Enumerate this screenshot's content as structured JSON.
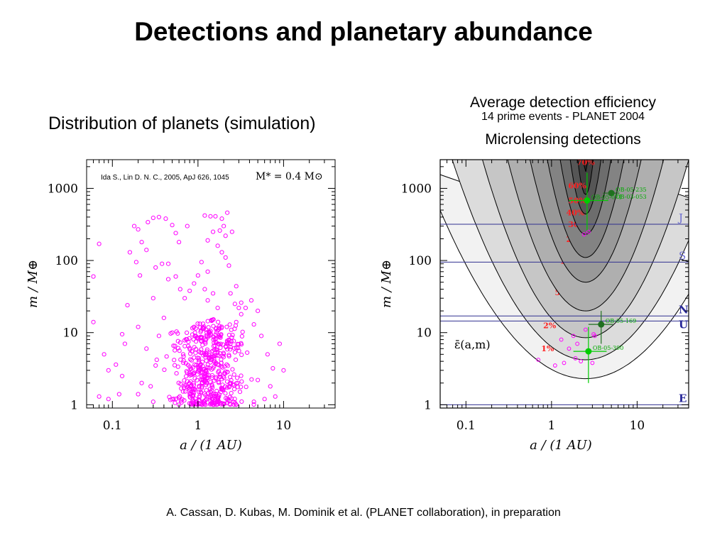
{
  "slide": {
    "title": "Detections and planetary abundance",
    "left_subtitle": "Distribution of planets (simulation)",
    "right_subtitle_1": "Average detection efficiency",
    "right_subtitle_2": "14 prime events - PLANET 2004",
    "right_subtitle_3": "Microlensing detections",
    "credits": "A. Cassan, D. Kubas, M. Dominik et al. (PLANET collaboration), in preparation"
  },
  "colors": {
    "simulated_planets": "#ff00ff",
    "planet_lines": "#303090",
    "detections": "#00cc00",
    "efficiency_labels": "#ff2020"
  },
  "chart_data": [
    {
      "type": "scatter",
      "citation": "Ida S., Lin D. N. C., 2005, ApJ 626, 1045",
      "host_mass_label": "M* = 0.4 M⊙",
      "xlabel": "a / (1 AU)",
      "ylabel": "m / M⊕",
      "xscale": "log",
      "yscale": "log",
      "xlim": [
        0.05,
        40
      ],
      "ylim": [
        0.9,
        2500
      ],
      "xticks": [
        {
          "v": 0.1,
          "label": "0.1"
        },
        {
          "v": 1,
          "label": "1"
        },
        {
          "v": 10,
          "label": "10"
        }
      ],
      "yticks": [
        {
          "v": 1,
          "label": "1"
        },
        {
          "v": 10,
          "label": "10"
        },
        {
          "v": 100,
          "label": "100"
        },
        {
          "v": 1000,
          "label": "1000"
        }
      ],
      "marker_color": "#ff00ff",
      "series": [
        {
          "points": [
            [
              0.06,
              60
            ],
            [
              0.07,
              170
            ],
            [
              0.06,
              14
            ],
            [
              0.08,
              5
            ],
            [
              0.07,
              1.3
            ],
            [
              0.09,
              3
            ],
            [
              0.09,
              1.2
            ],
            [
              0.12,
              1.4
            ],
            [
              0.13,
              2.5
            ],
            [
              0.14,
              7
            ],
            [
              0.15,
              24
            ],
            [
              0.16,
              130
            ],
            [
              0.18,
              300
            ],
            [
              0.2,
              270
            ],
            [
              0.22,
              180
            ],
            [
              0.19,
              95
            ],
            [
              0.21,
              62
            ],
            [
              0.25,
              140
            ],
            [
              0.26,
              340
            ],
            [
              0.3,
              390
            ],
            [
              0.35,
              400
            ],
            [
              0.42,
              380
            ],
            [
              0.5,
              310
            ],
            [
              0.55,
              240
            ],
            [
              0.6,
              180
            ],
            [
              0.75,
              300
            ],
            [
              0.32,
              80
            ],
            [
              0.38,
              90
            ],
            [
              0.45,
              90
            ],
            [
              0.55,
              60
            ],
            [
              0.62,
              40
            ],
            [
              0.7,
              30
            ],
            [
              0.8,
              38
            ],
            [
              0.9,
              48
            ],
            [
              1.0,
              62
            ],
            [
              1.1,
              95
            ],
            [
              1.2,
              420
            ],
            [
              1.4,
              410
            ],
            [
              1.6,
              410
            ],
            [
              1.9,
              380
            ],
            [
              2.2,
              460
            ],
            [
              1.5,
              250
            ],
            [
              1.8,
              260
            ],
            [
              2.0,
              300
            ],
            [
              2.1,
              220
            ],
            [
              2.5,
              250
            ],
            [
              1.3,
              190
            ],
            [
              1.7,
              160
            ],
            [
              1.9,
              130
            ],
            [
              2.1,
              110
            ],
            [
              2.3,
              85
            ],
            [
              1.3,
              70
            ],
            [
              1.5,
              35
            ],
            [
              1.7,
              22
            ],
            [
              2.4,
              35
            ],
            [
              2.7,
              25
            ],
            [
              3.0,
              22
            ],
            [
              3.2,
              26
            ],
            [
              3.6,
              22
            ],
            [
              4.2,
              28
            ],
            [
              5.0,
              20
            ],
            [
              0.2,
              12
            ],
            [
              0.25,
              6
            ],
            [
              0.28,
              1.8
            ],
            [
              0.3,
              1.1
            ],
            [
              0.32,
              3.5
            ],
            [
              0.35,
              9
            ],
            [
              0.33,
              4.2
            ],
            [
              6.0,
              1.2
            ],
            [
              8.0,
              1.3
            ],
            [
              4.5,
              1.1
            ],
            [
              7.0,
              1.8
            ],
            [
              9.0,
              7
            ],
            [
              10.0,
              3
            ],
            [
              1.2,
              40
            ],
            [
              0.45,
              55
            ],
            [
              0.3,
              30
            ],
            [
              0.4,
              16
            ],
            [
              0.5,
              10
            ],
            [
              0.9,
              12
            ],
            [
              2.8,
              14
            ],
            [
              1.3,
              28
            ],
            [
              2.8,
              44
            ],
            [
              3.2,
              18
            ],
            [
              4.5,
              13
            ],
            [
              5.5,
              9
            ],
            [
              6.5,
              5
            ],
            [
              7.5,
              3.2
            ],
            [
              5.0,
              2.2
            ],
            [
              0.22,
              2.0
            ],
            [
              0.6,
              1.0
            ],
            [
              0.2,
              1.4
            ],
            [
              0.11,
              3.6
            ],
            [
              0.13,
              9.5
            ]
          ]
        }
      ],
      "dense_region": {
        "x_range": [
          0.35,
          5.0
        ],
        "y_range": [
          1.0,
          12.0
        ],
        "count": 520
      }
    },
    {
      "type": "contour",
      "xlabel": "a / (1 AU)",
      "ylabel": "m / M⊕",
      "xscale": "log",
      "yscale": "log",
      "xlim": [
        0.05,
        40
      ],
      "ylim": [
        0.9,
        2500
      ],
      "xticks": [
        {
          "v": 0.1,
          "label": "0.1"
        },
        {
          "v": 1,
          "label": "1"
        },
        {
          "v": 10,
          "label": "10"
        }
      ],
      "yticks": [
        {
          "v": 1,
          "label": "1"
        },
        {
          "v": 10,
          "label": "10"
        },
        {
          "v": 100,
          "label": "100"
        },
        {
          "v": 1000,
          "label": "1000"
        }
      ],
      "annotation": "ε̄(a,m)",
      "contour_levels": [
        {
          "label": "1%",
          "label_at": [
            0.9,
            5.5
          ],
          "min_mass": 2.3,
          "half_width": 1.45
        },
        {
          "label": "2%",
          "label_at": [
            0.95,
            11.5
          ],
          "min_mass": 4.2,
          "half_width": 1.22
        },
        {
          "label": "5%",
          "label_at": [
            1.3,
            33
          ],
          "min_mass": 8.5,
          "half_width": 1.0
        },
        {
          "label": "10%",
          "label_at": [
            1.6,
            90
          ],
          "min_mass": 20,
          "half_width": 0.82
        },
        {
          "label": "20%",
          "label_at": [
            1.9,
            180
          ],
          "min_mass": 50,
          "half_width": 0.65
        },
        {
          "label": "30%",
          "label_at": [
            2.0,
            290
          ],
          "min_mass": 110,
          "half_width": 0.5
        },
        {
          "label": "40%",
          "label_at": [
            1.9,
            420
          ],
          "min_mass": 230,
          "half_width": 0.38
        },
        {
          "label": "50%",
          "label_at": [
            2.0,
            620
          ],
          "min_mass": 440,
          "half_width": 0.27
        },
        {
          "label": "60%",
          "label_at": [
            2.0,
            1000
          ],
          "min_mass": 820,
          "half_width": 0.17
        },
        {
          "label": "70%",
          "label_at": [
            2.5,
            2100
          ],
          "min_mass": 1700,
          "half_width": 0.08
        }
      ],
      "planet_lines": [
        {
          "name": "J",
          "mass": 318
        },
        {
          "name": "S",
          "mass": 95
        },
        {
          "name": "N",
          "mass": 17
        },
        {
          "name": "U",
          "mass": 14.5
        },
        {
          "name": "E",
          "mass": 1
        }
      ],
      "detections": [
        {
          "label": "OB-05-235",
          "a": 5.0,
          "m": 860,
          "err_a": [
            4.0,
            6.2
          ],
          "err_m": null,
          "color": "#207020"
        },
        {
          "label": "OB-03-053",
          "a": 5.0,
          "m": 860,
          "err_a": null,
          "err_m": null,
          "color": "#207020"
        },
        {
          "label": "OB-05-071",
          "a": 2.6,
          "m": 680,
          "err_a": [
            1.6,
            4.6
          ],
          "err_m": [
            260,
            1650
          ],
          "color": "#00cc00"
        },
        {
          "label": "OB-05-169",
          "a": 3.8,
          "m": 13,
          "err_a": [
            2.7,
            5.2
          ],
          "err_m": [
            7,
            20
          ],
          "color": "#207020"
        },
        {
          "label": "OB-05-390",
          "a": 2.7,
          "m": 5.5,
          "err_a": [
            1.8,
            4.4
          ],
          "err_m": [
            2.0,
            12
          ],
          "color": "#00cc00"
        }
      ],
      "simulated_overlay": [
        [
          1.3,
          8
        ],
        [
          1.8,
          9
        ],
        [
          2.5,
          11
        ],
        [
          3.2,
          9
        ],
        [
          1.6,
          6
        ],
        [
          2.2,
          4
        ],
        [
          1.4,
          3.8
        ],
        [
          3.0,
          3.8
        ],
        [
          1.1,
          3.5
        ],
        [
          2.0,
          7
        ],
        [
          0.7,
          4.2
        ],
        [
          2.7,
          250
        ],
        [
          2.4,
          230
        ],
        [
          3.1,
          9.5
        ],
        [
          1.9,
          4.4
        ]
      ],
      "overlay_color": "#ff00ff"
    }
  ]
}
